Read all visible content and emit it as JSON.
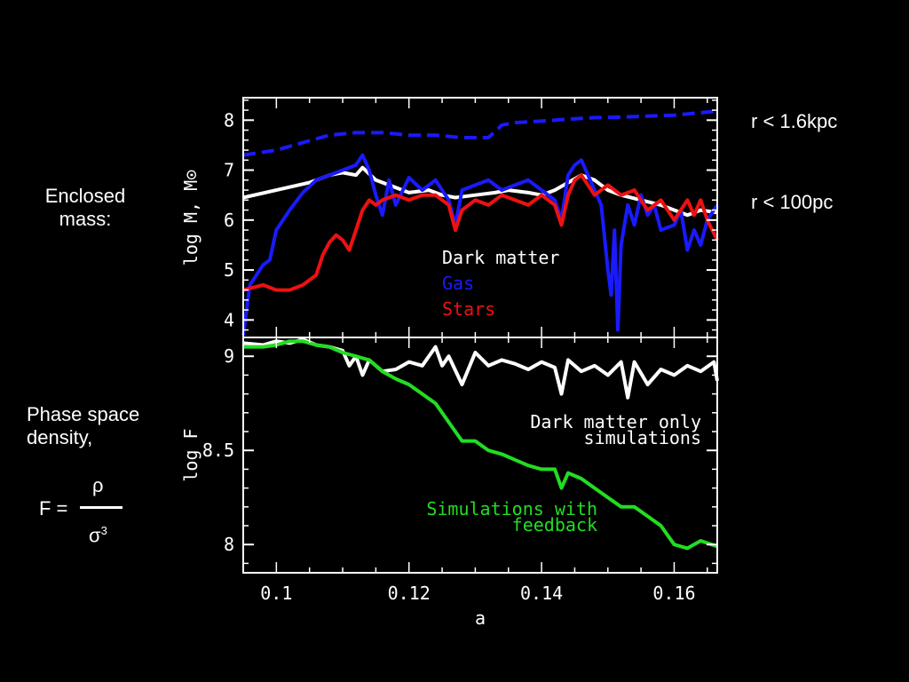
{
  "slide": {
    "enclosed_label_1": "Enclosed",
    "enclosed_label_2": "mass:",
    "phase_label_1": "Phase space",
    "phase_label_2": "density,",
    "formula": {
      "lhs": "F =",
      "numerator": "ρ",
      "denominator": "σ",
      "exponent": "3"
    },
    "r_outer_label": "r < 1.6kpc",
    "r_inner_label": "r < 100pc"
  },
  "colors": {
    "white": "#ffffff",
    "gas": "#1a1aff",
    "stars": "#ee1111",
    "feedback": "#22dd22",
    "background": "#000000"
  },
  "chart_data": [
    {
      "type": "line",
      "panel": "top",
      "ylabel": "log M, M⊙",
      "xlim": [
        0.095,
        0.1665
      ],
      "ylim": [
        3.65,
        8.45
      ],
      "yticks": [
        "4",
        "5",
        "6",
        "7",
        "8"
      ],
      "grid": false,
      "legend_placement": "center",
      "legend": [
        "Dark matter",
        "Gas",
        "Stars"
      ],
      "series": [
        {
          "name": "Dark matter",
          "color": "#ffffff",
          "dash": false,
          "x": [
            0.095,
            0.1,
            0.105,
            0.108,
            0.11,
            0.112,
            0.113,
            0.115,
            0.117,
            0.12,
            0.123,
            0.125,
            0.127,
            0.13,
            0.133,
            0.135,
            0.138,
            0.14,
            0.142,
            0.144,
            0.146,
            0.148,
            0.15,
            0.152,
            0.155,
            0.158,
            0.16,
            0.162,
            0.164,
            0.1665
          ],
          "y": [
            6.45,
            6.6,
            6.75,
            6.9,
            6.95,
            6.9,
            7.05,
            6.8,
            6.7,
            6.55,
            6.6,
            6.5,
            6.45,
            6.5,
            6.55,
            6.6,
            6.55,
            6.5,
            6.6,
            6.75,
            6.9,
            6.8,
            6.6,
            6.5,
            6.4,
            6.3,
            6.2,
            6.1,
            6.2,
            6.15
          ]
        },
        {
          "name": "Gas",
          "color": "#1a1aff",
          "dash": false,
          "x": [
            0.095,
            0.096,
            0.097,
            0.098,
            0.099,
            0.1,
            0.102,
            0.104,
            0.106,
            0.108,
            0.11,
            0.112,
            0.113,
            0.114,
            0.115,
            0.116,
            0.117,
            0.118,
            0.12,
            0.122,
            0.124,
            0.126,
            0.127,
            0.128,
            0.13,
            0.132,
            0.134,
            0.136,
            0.138,
            0.14,
            0.142,
            0.143,
            0.144,
            0.145,
            0.146,
            0.147,
            0.148,
            0.149,
            0.15,
            0.1505,
            0.151,
            0.1515,
            0.152,
            0.153,
            0.154,
            0.155,
            0.156,
            0.157,
            0.158,
            0.16,
            0.161,
            0.162,
            0.163,
            0.164,
            0.165,
            0.1665
          ],
          "y": [
            3.7,
            4.7,
            4.9,
            5.1,
            5.2,
            5.8,
            6.2,
            6.55,
            6.8,
            6.9,
            7.0,
            7.1,
            7.3,
            7.0,
            6.5,
            6.1,
            6.8,
            6.3,
            6.85,
            6.6,
            6.8,
            6.4,
            5.9,
            6.6,
            6.7,
            6.8,
            6.6,
            6.7,
            6.8,
            6.6,
            6.4,
            6.0,
            6.9,
            7.1,
            7.2,
            6.9,
            6.6,
            6.3,
            5.0,
            4.5,
            5.8,
            3.8,
            5.5,
            6.3,
            5.9,
            6.5,
            6.1,
            6.3,
            5.8,
            5.9,
            6.2,
            5.4,
            5.8,
            5.5,
            6.0,
            6.3
          ]
        },
        {
          "name": "Gas r < 1.6kpc",
          "color": "#1a1aff",
          "dash": true,
          "x": [
            0.095,
            0.1,
            0.104,
            0.108,
            0.112,
            0.116,
            0.12,
            0.124,
            0.128,
            0.132,
            0.134,
            0.136,
            0.14,
            0.144,
            0.148,
            0.152,
            0.156,
            0.16,
            0.164,
            0.1665
          ],
          "y": [
            7.3,
            7.4,
            7.55,
            7.7,
            7.75,
            7.75,
            7.7,
            7.7,
            7.65,
            7.65,
            7.9,
            7.95,
            7.98,
            8.02,
            8.05,
            8.06,
            8.08,
            8.1,
            8.15,
            8.18
          ]
        },
        {
          "name": "Stars",
          "color": "#ee1111",
          "dash": false,
          "x": [
            0.095,
            0.098,
            0.1,
            0.102,
            0.104,
            0.106,
            0.107,
            0.108,
            0.109,
            0.11,
            0.111,
            0.112,
            0.113,
            0.114,
            0.115,
            0.116,
            0.118,
            0.12,
            0.122,
            0.124,
            0.126,
            0.127,
            0.128,
            0.13,
            0.132,
            0.134,
            0.136,
            0.138,
            0.14,
            0.142,
            0.143,
            0.144,
            0.145,
            0.146,
            0.148,
            0.15,
            0.152,
            0.154,
            0.156,
            0.158,
            0.16,
            0.162,
            0.163,
            0.164,
            0.165,
            0.1665
          ],
          "y": [
            4.6,
            4.7,
            4.6,
            4.6,
            4.7,
            4.9,
            5.3,
            5.55,
            5.7,
            5.6,
            5.4,
            5.8,
            6.2,
            6.4,
            6.3,
            6.4,
            6.5,
            6.4,
            6.5,
            6.5,
            6.3,
            5.8,
            6.2,
            6.4,
            6.3,
            6.5,
            6.4,
            6.3,
            6.5,
            6.3,
            5.9,
            6.5,
            6.8,
            6.9,
            6.5,
            6.7,
            6.5,
            6.6,
            6.2,
            6.4,
            6.0,
            6.4,
            6.1,
            6.4,
            6.0,
            5.6
          ]
        }
      ]
    },
    {
      "type": "line",
      "panel": "bottom",
      "xlabel": "a",
      "ylabel": "log F",
      "xlim": [
        0.095,
        0.1665
      ],
      "ylim": [
        7.85,
        9.1
      ],
      "xticks": [
        "0.1",
        "0.12",
        "0.14",
        "0.16"
      ],
      "yticks": [
        "8",
        "8.5",
        "9"
      ],
      "grid": false,
      "annotations": [
        "Dark matter only",
        "simulations",
        "Simulations with",
        "feedback"
      ],
      "series": [
        {
          "name": "Dark matter only simulations",
          "color": "#ffffff",
          "x": [
            0.095,
            0.098,
            0.1,
            0.102,
            0.104,
            0.106,
            0.108,
            0.11,
            0.111,
            0.112,
            0.113,
            0.114,
            0.116,
            0.118,
            0.12,
            0.122,
            0.124,
            0.125,
            0.126,
            0.128,
            0.13,
            0.132,
            0.134,
            0.136,
            0.138,
            0.14,
            0.142,
            0.143,
            0.144,
            0.146,
            0.148,
            0.15,
            0.152,
            0.153,
            0.154,
            0.156,
            0.158,
            0.16,
            0.162,
            0.164,
            0.166,
            0.1665
          ],
          "y": [
            9.07,
            9.06,
            9.08,
            9.07,
            9.09,
            9.06,
            9.05,
            9.03,
            8.95,
            9.0,
            8.9,
            8.98,
            8.92,
            8.93,
            8.97,
            8.95,
            9.05,
            8.95,
            9.0,
            8.85,
            9.02,
            8.95,
            8.98,
            8.96,
            8.93,
            8.97,
            8.94,
            8.8,
            8.98,
            8.92,
            8.95,
            8.9,
            8.97,
            8.78,
            8.97,
            8.85,
            8.93,
            8.9,
            8.95,
            8.92,
            8.97,
            8.87
          ]
        },
        {
          "name": "Simulations with feedback",
          "color": "#22dd22",
          "x": [
            0.095,
            0.098,
            0.1,
            0.102,
            0.104,
            0.106,
            0.108,
            0.11,
            0.112,
            0.114,
            0.116,
            0.118,
            0.12,
            0.122,
            0.124,
            0.126,
            0.128,
            0.13,
            0.132,
            0.134,
            0.136,
            0.138,
            0.14,
            0.142,
            0.143,
            0.144,
            0.146,
            0.148,
            0.15,
            0.152,
            0.154,
            0.156,
            0.158,
            0.16,
            0.162,
            0.164,
            0.1665
          ],
          "y": [
            9.05,
            9.05,
            9.06,
            9.08,
            9.08,
            9.06,
            9.05,
            9.02,
            9.0,
            8.98,
            8.92,
            8.88,
            8.85,
            8.8,
            8.75,
            8.65,
            8.55,
            8.55,
            8.5,
            8.48,
            8.45,
            8.42,
            8.4,
            8.4,
            8.3,
            8.38,
            8.35,
            8.3,
            8.25,
            8.2,
            8.2,
            8.15,
            8.1,
            8.0,
            7.98,
            8.02,
            7.99
          ]
        }
      ]
    }
  ]
}
